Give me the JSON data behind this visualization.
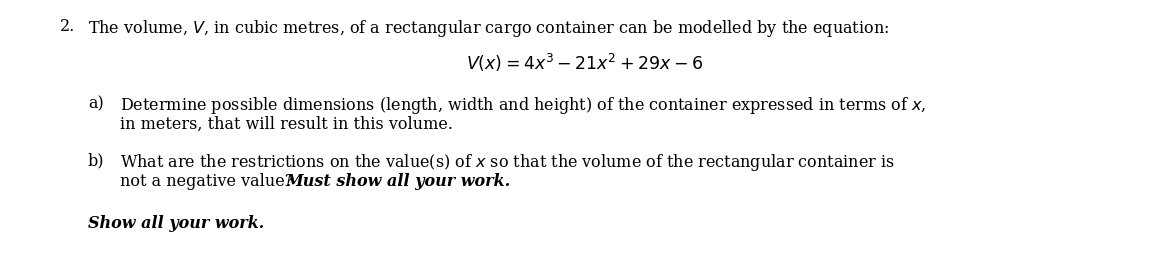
{
  "background_color": "#ffffff",
  "font_size": 11.5,
  "q_num": "2.",
  "q_text": "The volume, $V$, in cubic metres, of a rectangular cargo container can be modelled by the equation:",
  "equation": "$V(x) = 4x^3 - 21x^2 + 29x - 6$",
  "a_label": "a)",
  "a_line1": "Determine possible dimensions (length, width and height) of the container expressed in terms of $x$,",
  "a_line2": "in meters, that will result in this volume.",
  "b_label": "b)",
  "b_line1": "What are the restrictions on the value(s) of $x$ so that the volume of the rectangular container is",
  "b_line2_plain": "not a negative value?  ",
  "b_line2_italic": "Must show all your work.",
  "footer": "Show all your work."
}
